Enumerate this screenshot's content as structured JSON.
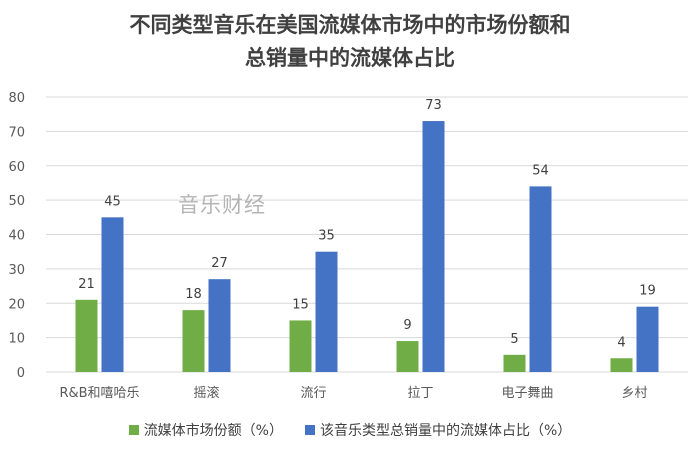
{
  "title_lines": [
    "不同类型音乐在美国流媒体市场中的市场份额和",
    "总销量中的流媒体占比"
  ],
  "watermark": "音乐财经",
  "colors": {
    "series1": "#70ad47",
    "series2": "#4472c4",
    "grid": "#d9d9d9",
    "axis_text": "#595959"
  },
  "chart_data": {
    "type": "bar",
    "categories": [
      "R&B和嘻哈乐",
      "摇滚",
      "流行",
      "拉丁",
      "电子舞曲",
      "乡村"
    ],
    "series": [
      {
        "name": "流媒体市场份额（%）",
        "values": [
          21,
          18,
          15,
          9,
          5,
          4
        ]
      },
      {
        "name": "该音乐类型总销量中的流媒体占比（%）",
        "values": [
          45,
          27,
          35,
          73,
          54,
          19
        ]
      }
    ],
    "ylim": [
      0,
      80
    ],
    "yticks": [
      0,
      10,
      20,
      30,
      40,
      50,
      60,
      70,
      80
    ],
    "grid": true,
    "legend_position": "bottom",
    "data_labels": true
  }
}
